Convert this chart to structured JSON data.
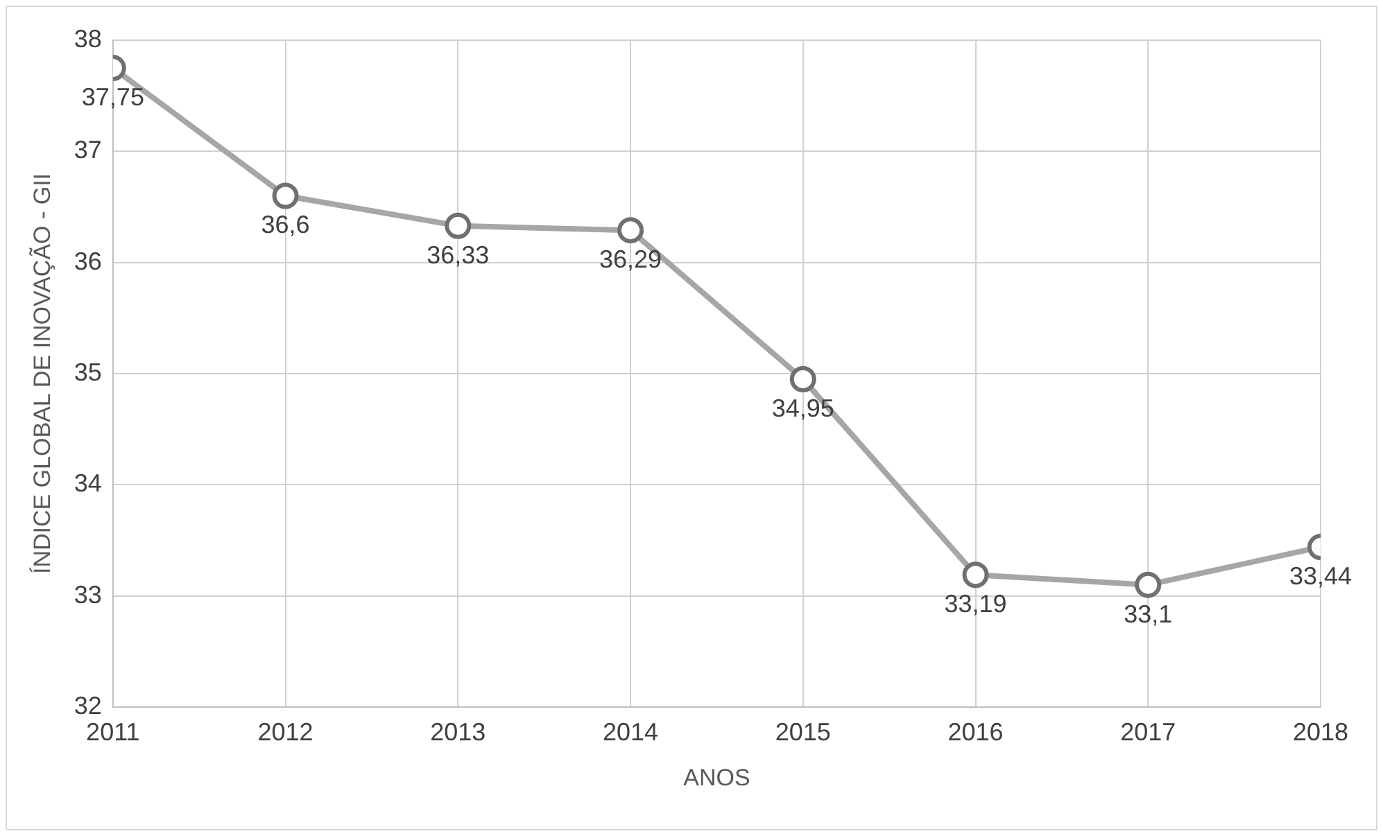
{
  "chart_data": {
    "type": "line",
    "xlabel": "ANOS",
    "ylabel": "ÍNDICE GLOBAL DE INOVAÇÃO - GII",
    "x": [
      2011,
      2012,
      2013,
      2014,
      2015,
      2016,
      2017,
      2018
    ],
    "series": [
      {
        "color": "#a6a6a6",
        "values": [
          37.75,
          36.6,
          36.33,
          36.29,
          34.95,
          33.19,
          33.1,
          33.44
        ],
        "value_labels": [
          "37,75",
          "36,6",
          "36,33",
          "36,29",
          "34,95",
          "33,19",
          "33,1",
          "33,44"
        ]
      }
    ],
    "xlim": [
      2011,
      2018
    ],
    "xticks": [
      2011,
      2012,
      2013,
      2014,
      2015,
      2016,
      2017,
      2018
    ],
    "ylim": [
      32,
      38
    ],
    "yticks": [
      32,
      33,
      34,
      35,
      36,
      37,
      38
    ],
    "grid": true,
    "legend": false,
    "marker": "circle",
    "line_style": "solid"
  }
}
